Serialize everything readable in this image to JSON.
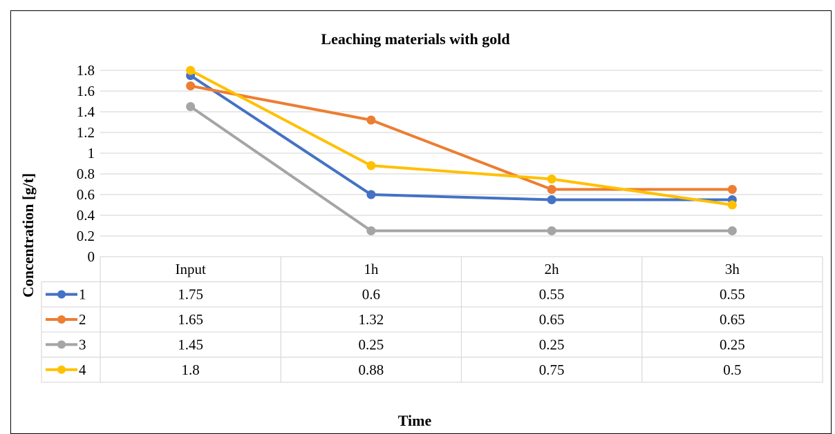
{
  "chart_data": {
    "type": "line",
    "title": "Leaching materials with gold",
    "xlabel": "Time",
    "ylabel": "Concentration [g/t]",
    "categories": [
      "Input",
      "1h",
      "2h",
      "3h"
    ],
    "ylim": [
      0,
      1.8
    ],
    "yticks": [
      "0",
      "0.2",
      "0.4",
      "0.6",
      "0.8",
      "1",
      "1.2",
      "1.4",
      "1.6",
      "1.8"
    ],
    "grid": true,
    "legend": "data-table",
    "series": [
      {
        "name": "1",
        "color": "#4472C4",
        "values": [
          1.75,
          0.6,
          0.55,
          0.55
        ],
        "labels": [
          "1.75",
          "0.6",
          "0.55",
          "0.55"
        ]
      },
      {
        "name": "2",
        "color": "#ED7D31",
        "values": [
          1.65,
          1.32,
          0.65,
          0.65
        ],
        "labels": [
          "1.65",
          "1.32",
          "0.65",
          "0.65"
        ]
      },
      {
        "name": "3",
        "color": "#A5A5A5",
        "values": [
          1.45,
          0.25,
          0.25,
          0.25
        ],
        "labels": [
          "1.45",
          "0.25",
          "0.25",
          "0.25"
        ]
      },
      {
        "name": "4",
        "color": "#FFC000",
        "values": [
          1.8,
          0.88,
          0.75,
          0.5
        ],
        "labels": [
          "1.8",
          "0.88",
          "0.75",
          "0.5"
        ]
      }
    ]
  }
}
